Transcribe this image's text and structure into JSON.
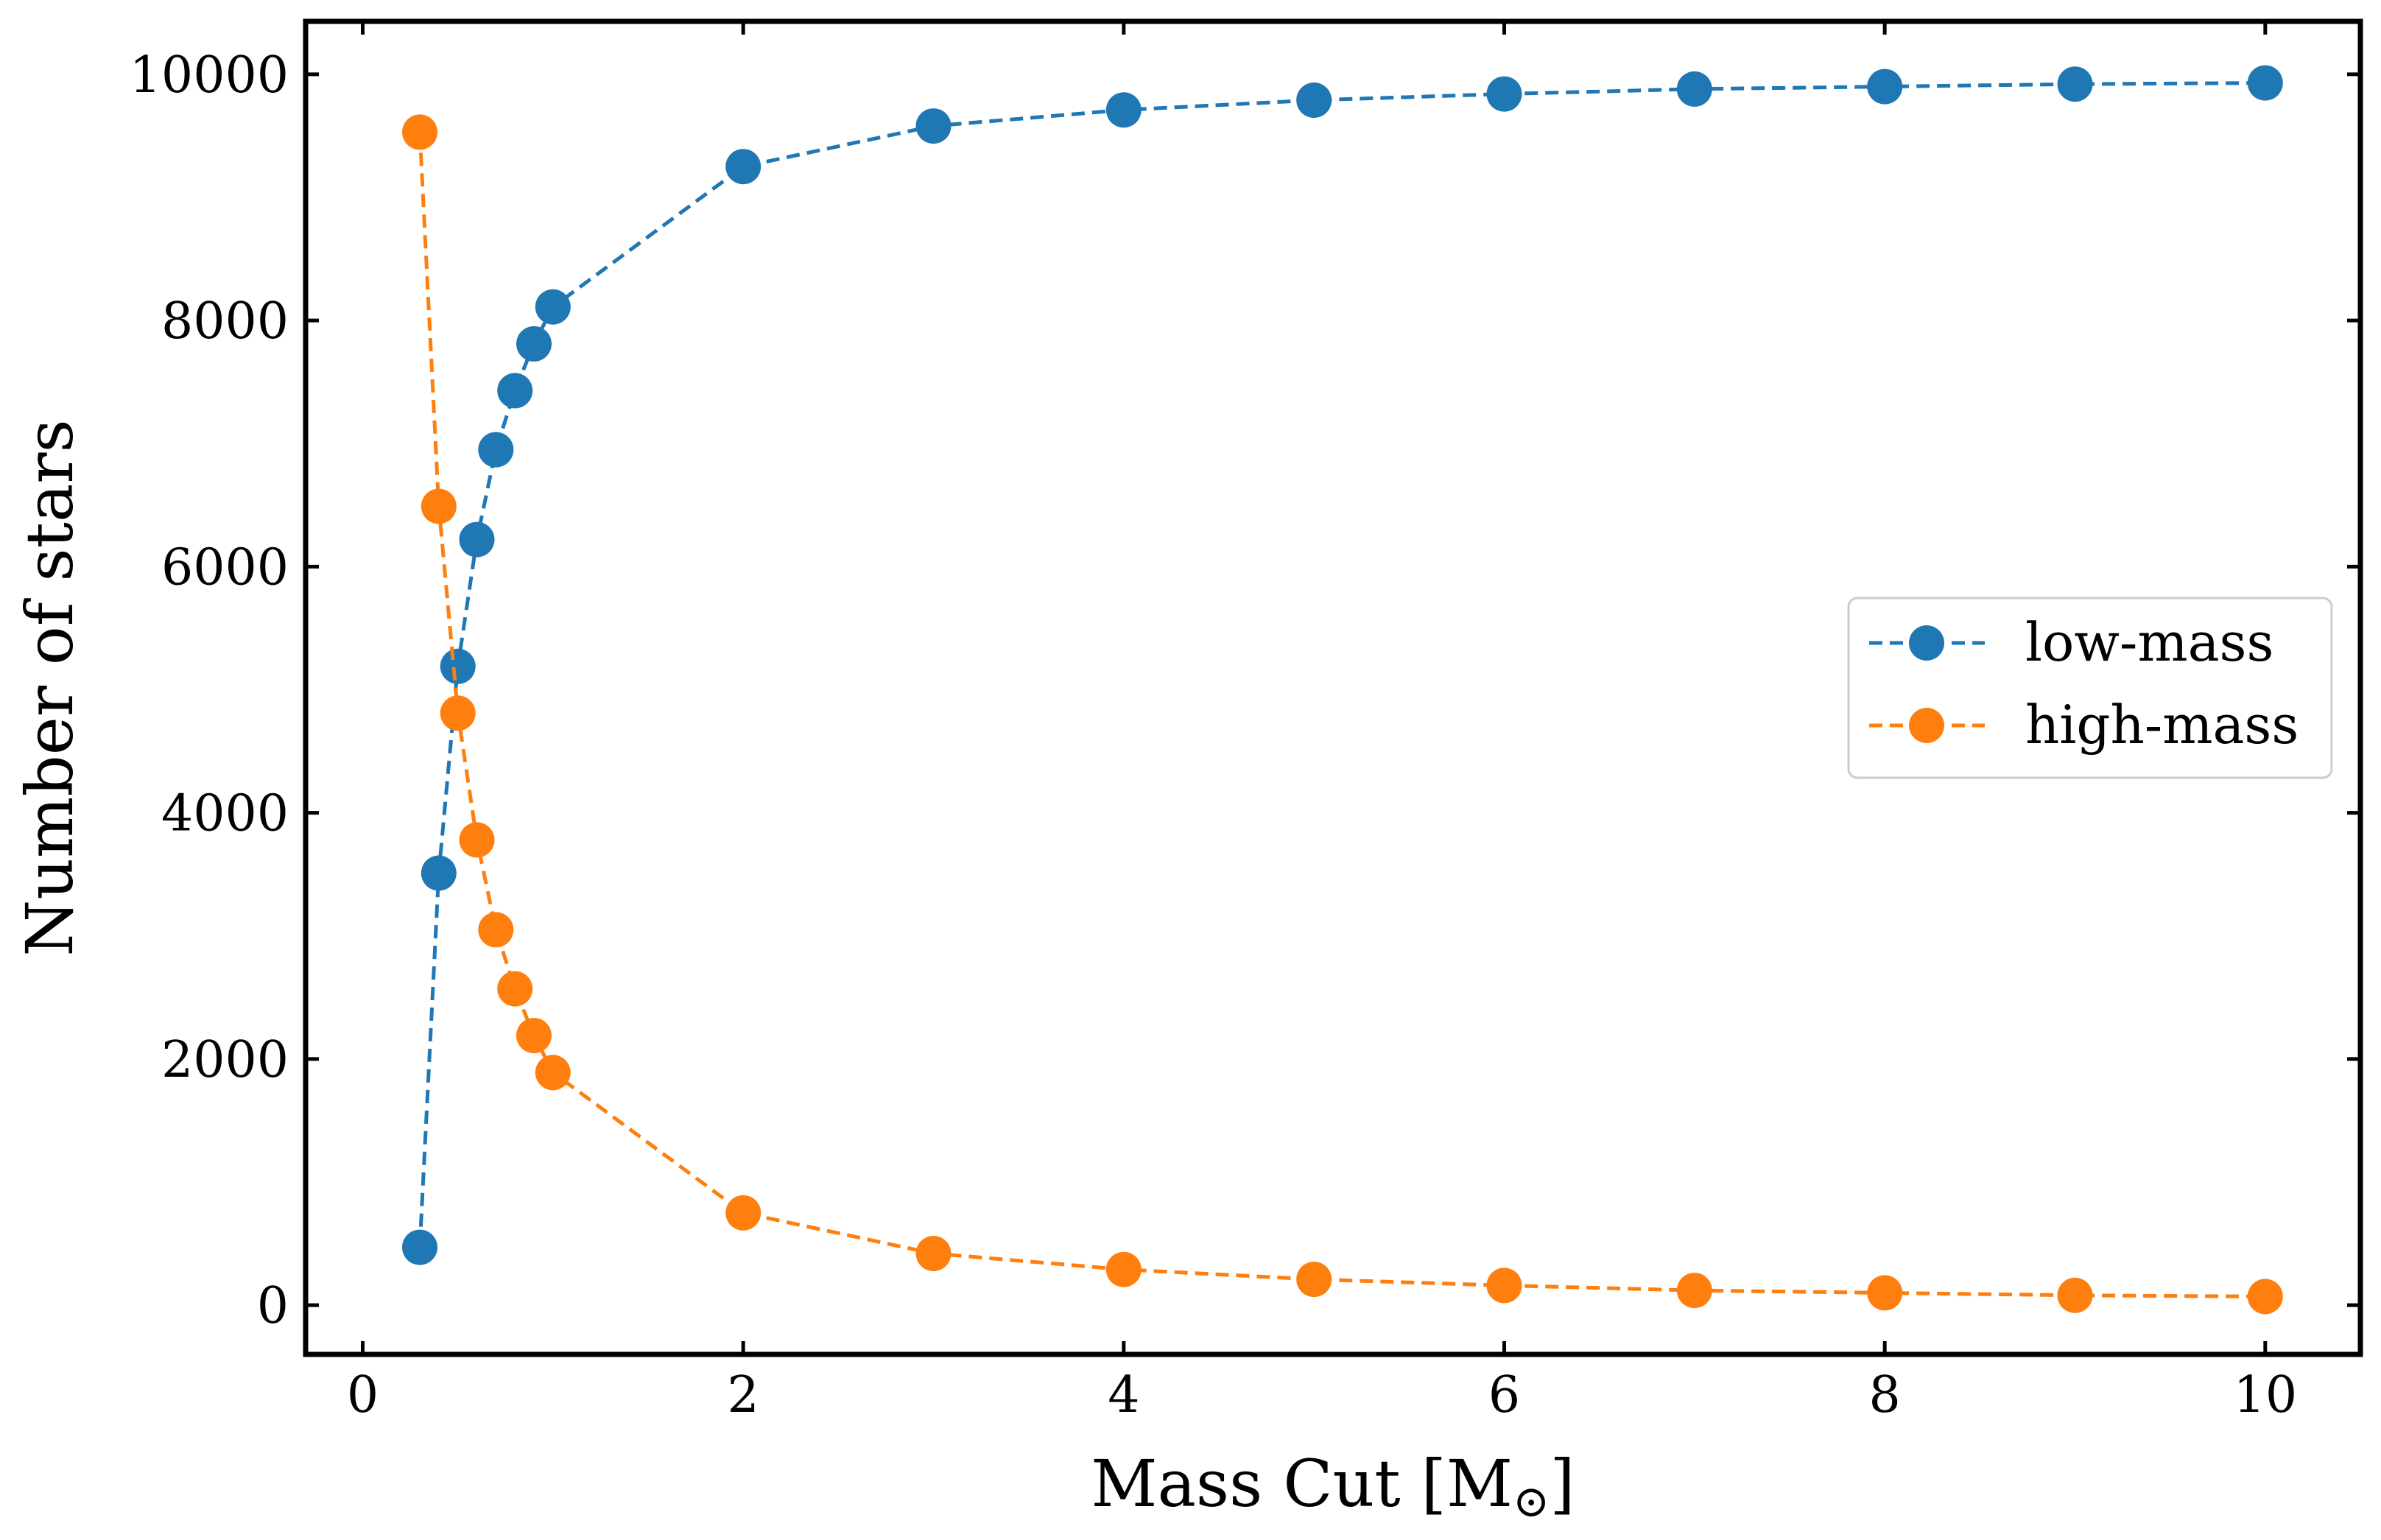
{
  "chart_data": {
    "type": "line",
    "title": "",
    "xlabel": "Mass Cut [M",
    "xlabel_sub": "⊙",
    "xlabel_close": "]",
    "ylabel": "Number of stars",
    "xlim": [
      -0.3,
      10.5
    ],
    "ylim": [
      -400,
      10430
    ],
    "x_ticks": [
      0,
      2,
      4,
      6,
      8,
      10
    ],
    "x_tick_labels": [
      "0",
      "2",
      "4",
      "6",
      "8",
      "10"
    ],
    "y_ticks": [
      0,
      2000,
      4000,
      6000,
      8000,
      10000
    ],
    "y_tick_labels": [
      "0",
      "2000",
      "4000",
      "6000",
      "8000",
      "10000"
    ],
    "grid": false,
    "legend_position": "center-right",
    "x": [
      0.3,
      0.4,
      0.5,
      0.6,
      0.7,
      0.8,
      0.9,
      1.0,
      2,
      3,
      4,
      5,
      6,
      7,
      8,
      9,
      10
    ],
    "series": [
      {
        "name": "low-mass",
        "color": "#1f77b4",
        "line_style": "dashed",
        "marker": "circle",
        "values": [
          470,
          3510,
          5190,
          6220,
          6950,
          7430,
          7810,
          8110,
          9250,
          9580,
          9710,
          9790,
          9840,
          9880,
          9900,
          9920,
          9930
        ]
      },
      {
        "name": "high-mass",
        "color": "#ff7f0e",
        "line_style": "dashed",
        "marker": "circle",
        "values": [
          9530,
          6490,
          4810,
          3780,
          3050,
          2570,
          2190,
          1890,
          750,
          420,
          290,
          210,
          160,
          120,
          100,
          80,
          70
        ]
      }
    ]
  }
}
